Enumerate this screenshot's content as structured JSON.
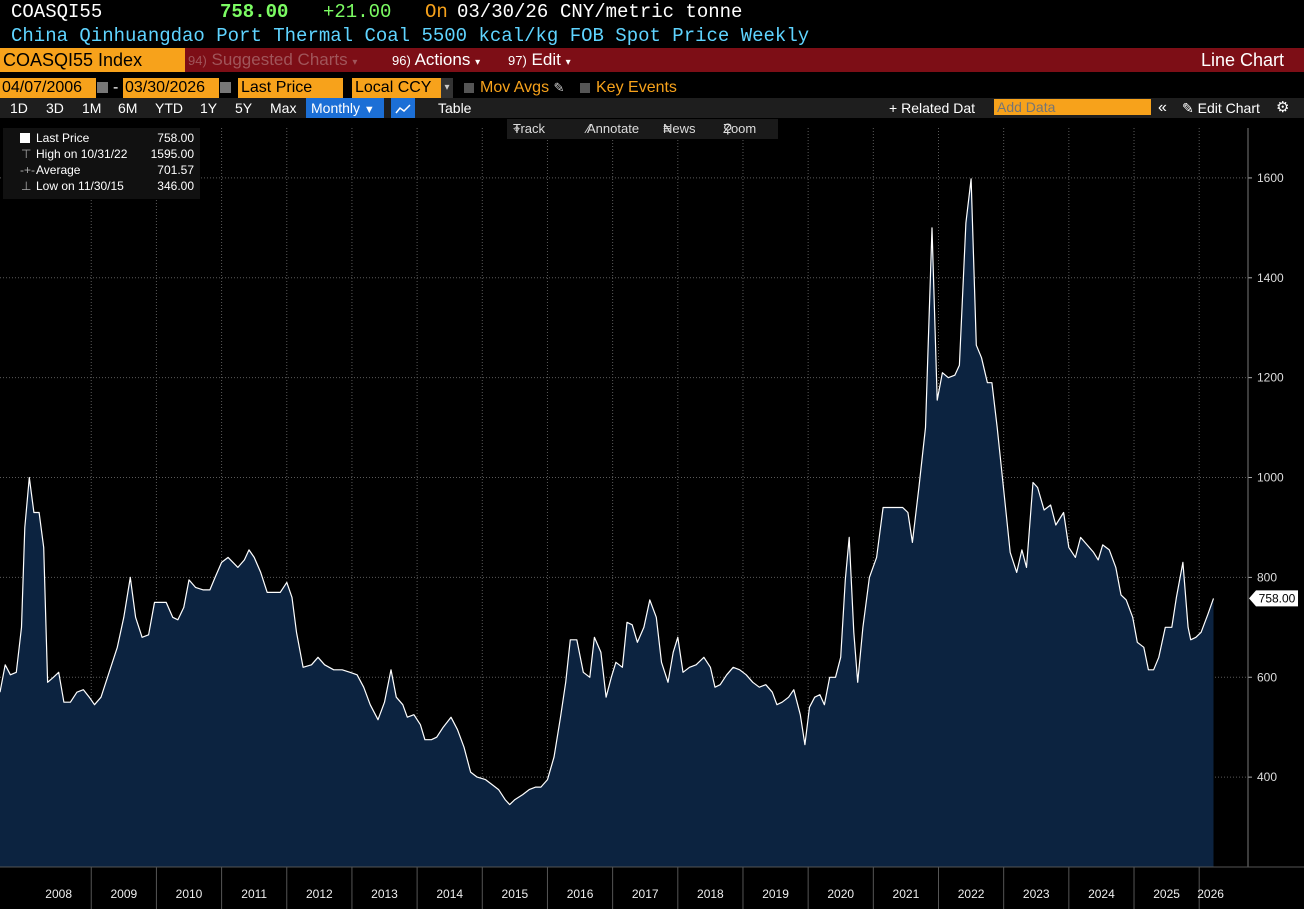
{
  "header": {
    "ticker": "COASQI55",
    "price": "758.00",
    "change": "+21.00",
    "on_label": "On",
    "date": "03/30/26",
    "unit": "CNY/metric tonne",
    "description": "China Qinhuangdao Port Thermal Coal 5500 kcal/kg FOB Spot Price Weekly"
  },
  "menubar": {
    "security": "COASQI55 Index",
    "suggested_num": "94)",
    "suggested_label": "Suggested Charts",
    "actions_num": "96)",
    "actions_label": "Actions",
    "edit_num": "97)",
    "edit_label": "Edit",
    "chart_type": "Line Chart"
  },
  "controls": {
    "start_date": "04/07/2006",
    "dash": "-",
    "end_date": "03/30/2026",
    "field": "Last Price",
    "currency": "Local CCY",
    "mov_avgs": "Mov Avgs",
    "key_events": "Key Events"
  },
  "periods": {
    "d1": "1D",
    "d3": "3D",
    "m1": "1M",
    "m6": "6M",
    "ytd": "YTD",
    "y1": "1Y",
    "y5": "5Y",
    "max": "Max",
    "frequency": "Monthly",
    "table": "Table",
    "related": "Related Dat",
    "add_data_placeholder": "Add Data",
    "edit_chart": "Edit Chart"
  },
  "chart_tools": {
    "track": "Track",
    "annotate": "Annotate",
    "news": "News",
    "zoom": "Zoom"
  },
  "legend": {
    "last_label": "Last Price",
    "last_value": "758.00",
    "high_label": "High on 10/31/22",
    "high_value": "1595.00",
    "avg_label": "Average",
    "avg_value": "701.57",
    "low_label": "Low on 11/30/15",
    "low_value": "346.00"
  },
  "colors": {
    "line": "#ffffff",
    "area": "#0c2340",
    "grid": "#5a5a5a",
    "header_green": "#7cfc63",
    "header_orange": "#f7a21b",
    "menubar_red": "#7d0e16"
  },
  "chart_data": {
    "type": "area",
    "ylim": [
      220,
      1700
    ],
    "yticks": [
      400,
      600,
      800,
      1000,
      1200,
      1400,
      1600
    ],
    "xlabels": [
      "2008",
      "2009",
      "2010",
      "2011",
      "2012",
      "2013",
      "2014",
      "2015",
      "2016",
      "2017",
      "2018",
      "2019",
      "2020",
      "2021",
      "2022",
      "2023",
      "2024",
      "2025",
      "2026"
    ],
    "x_start": 2007.6,
    "x_end": 2026.35,
    "last_value_label": "758.00",
    "points": [
      [
        2007.6,
        570
      ],
      [
        2007.68,
        625
      ],
      [
        2007.76,
        605
      ],
      [
        2007.85,
        610
      ],
      [
        2007.93,
        700
      ],
      [
        2007.98,
        900
      ],
      [
        2008.05,
        1000
      ],
      [
        2008.12,
        930
      ],
      [
        2008.2,
        930
      ],
      [
        2008.27,
        860
      ],
      [
        2008.33,
        590
      ],
      [
        2008.42,
        600
      ],
      [
        2008.5,
        610
      ],
      [
        2008.58,
        550
      ],
      [
        2008.68,
        550
      ],
      [
        2008.78,
        570
      ],
      [
        2008.88,
        575
      ],
      [
        2008.97,
        560
      ],
      [
        2009.05,
        545
      ],
      [
        2009.15,
        560
      ],
      [
        2009.25,
        600
      ],
      [
        2009.4,
        660
      ],
      [
        2009.5,
        720
      ],
      [
        2009.6,
        800
      ],
      [
        2009.68,
        720
      ],
      [
        2009.78,
        680
      ],
      [
        2009.88,
        685
      ],
      [
        2009.97,
        750
      ],
      [
        2010.05,
        750
      ],
      [
        2010.15,
        750
      ],
      [
        2010.25,
        720
      ],
      [
        2010.33,
        715
      ],
      [
        2010.42,
        740
      ],
      [
        2010.5,
        795
      ],
      [
        2010.6,
        780
      ],
      [
        2010.72,
        775
      ],
      [
        2010.82,
        775
      ],
      [
        2010.9,
        800
      ],
      [
        2011.0,
        830
      ],
      [
        2011.1,
        840
      ],
      [
        2011.25,
        820
      ],
      [
        2011.35,
        835
      ],
      [
        2011.42,
        855
      ],
      [
        2011.5,
        840
      ],
      [
        2011.6,
        810
      ],
      [
        2011.7,
        770
      ],
      [
        2011.8,
        770
      ],
      [
        2011.9,
        770
      ],
      [
        2012.0,
        790
      ],
      [
        2012.08,
        760
      ],
      [
        2012.15,
        690
      ],
      [
        2012.25,
        620
      ],
      [
        2012.38,
        625
      ],
      [
        2012.48,
        640
      ],
      [
        2012.58,
        625
      ],
      [
        2012.72,
        615
      ],
      [
        2012.85,
        615
      ],
      [
        2012.97,
        610
      ],
      [
        2013.08,
        605
      ],
      [
        2013.18,
        580
      ],
      [
        2013.28,
        545
      ],
      [
        2013.4,
        515
      ],
      [
        2013.5,
        550
      ],
      [
        2013.6,
        615
      ],
      [
        2013.68,
        560
      ],
      [
        2013.78,
        545
      ],
      [
        2013.85,
        520
      ],
      [
        2013.95,
        525
      ],
      [
        2014.05,
        505
      ],
      [
        2014.12,
        475
      ],
      [
        2014.22,
        475
      ],
      [
        2014.3,
        480
      ],
      [
        2014.4,
        500
      ],
      [
        2014.52,
        520
      ],
      [
        2014.62,
        495
      ],
      [
        2014.72,
        460
      ],
      [
        2014.82,
        410
      ],
      [
        2014.92,
        400
      ],
      [
        2015.05,
        395
      ],
      [
        2015.15,
        385
      ],
      [
        2015.25,
        375
      ],
      [
        2015.35,
        355
      ],
      [
        2015.42,
        345
      ],
      [
        2015.5,
        355
      ],
      [
        2015.62,
        365
      ],
      [
        2015.72,
        375
      ],
      [
        2015.82,
        380
      ],
      [
        2015.9,
        380
      ],
      [
        2016.0,
        395
      ],
      [
        2016.1,
        440
      ],
      [
        2016.2,
        520
      ],
      [
        2016.28,
        590
      ],
      [
        2016.35,
        675
      ],
      [
        2016.45,
        675
      ],
      [
        2016.55,
        610
      ],
      [
        2016.65,
        600
      ],
      [
        2016.72,
        680
      ],
      [
        2016.82,
        650
      ],
      [
        2016.9,
        560
      ],
      [
        2016.98,
        600
      ],
      [
        2017.05,
        630
      ],
      [
        2017.15,
        620
      ],
      [
        2017.22,
        710
      ],
      [
        2017.3,
        705
      ],
      [
        2017.38,
        670
      ],
      [
        2017.48,
        700
      ],
      [
        2017.57,
        755
      ],
      [
        2017.67,
        720
      ],
      [
        2017.75,
        630
      ],
      [
        2017.85,
        590
      ],
      [
        2017.93,
        650
      ],
      [
        2018.0,
        680
      ],
      [
        2018.08,
        610
      ],
      [
        2018.18,
        620
      ],
      [
        2018.28,
        625
      ],
      [
        2018.4,
        640
      ],
      [
        2018.5,
        620
      ],
      [
        2018.57,
        580
      ],
      [
        2018.65,
        585
      ],
      [
        2018.75,
        605
      ],
      [
        2018.85,
        620
      ],
      [
        2018.95,
        615
      ],
      [
        2019.05,
        605
      ],
      [
        2019.15,
        590
      ],
      [
        2019.25,
        580
      ],
      [
        2019.35,
        585
      ],
      [
        2019.45,
        570
      ],
      [
        2019.52,
        545
      ],
      [
        2019.6,
        550
      ],
      [
        2019.7,
        560
      ],
      [
        2019.78,
        575
      ],
      [
        2019.88,
        525
      ],
      [
        2019.95,
        465
      ],
      [
        2020.02,
        540
      ],
      [
        2020.1,
        560
      ],
      [
        2020.18,
        565
      ],
      [
        2020.25,
        545
      ],
      [
        2020.33,
        600
      ],
      [
        2020.42,
        600
      ],
      [
        2020.5,
        640
      ],
      [
        2020.57,
        795
      ],
      [
        2020.63,
        880
      ],
      [
        2020.7,
        690
      ],
      [
        2020.76,
        590
      ],
      [
        2020.84,
        700
      ],
      [
        2020.94,
        800
      ],
      [
        2021.05,
        840
      ],
      [
        2021.15,
        940
      ],
      [
        2021.25,
        940
      ],
      [
        2021.35,
        940
      ],
      [
        2021.45,
        940
      ],
      [
        2021.53,
        930
      ],
      [
        2021.6,
        870
      ],
      [
        2021.7,
        980
      ],
      [
        2021.8,
        1100
      ],
      [
        2021.9,
        1500
      ],
      [
        2021.98,
        1155
      ],
      [
        2022.06,
        1210
      ],
      [
        2022.15,
        1200
      ],
      [
        2022.25,
        1205
      ],
      [
        2022.32,
        1225
      ],
      [
        2022.42,
        1510
      ],
      [
        2022.5,
        1598
      ],
      [
        2022.58,
        1265
      ],
      [
        2022.66,
        1240
      ],
      [
        2022.75,
        1190
      ],
      [
        2022.82,
        1190
      ],
      [
        2022.9,
        1100
      ],
      [
        2022.98,
        1000
      ],
      [
        2023.1,
        850
      ],
      [
        2023.2,
        810
      ],
      [
        2023.28,
        855
      ],
      [
        2023.35,
        820
      ],
      [
        2023.45,
        990
      ],
      [
        2023.52,
        980
      ],
      [
        2023.62,
        935
      ],
      [
        2023.72,
        945
      ],
      [
        2023.8,
        905
      ],
      [
        2023.92,
        930
      ],
      [
        2024.0,
        860
      ],
      [
        2024.1,
        840
      ],
      [
        2024.18,
        880
      ],
      [
        2024.28,
        865
      ],
      [
        2024.38,
        850
      ],
      [
        2024.45,
        835
      ],
      [
        2024.52,
        865
      ],
      [
        2024.62,
        855
      ],
      [
        2024.72,
        820
      ],
      [
        2024.8,
        765
      ],
      [
        2024.88,
        755
      ],
      [
        2024.98,
        720
      ],
      [
        2025.05,
        670
      ],
      [
        2025.15,
        660
      ],
      [
        2025.22,
        615
      ],
      [
        2025.3,
        615
      ],
      [
        2025.38,
        640
      ],
      [
        2025.48,
        700
      ],
      [
        2025.58,
        700
      ],
      [
        2025.65,
        760
      ],
      [
        2025.75,
        830
      ],
      [
        2025.83,
        700
      ],
      [
        2025.87,
        675
      ],
      [
        2025.95,
        680
      ],
      [
        2026.03,
        690
      ],
      [
        2026.13,
        725
      ],
      [
        2026.22,
        758
      ]
    ]
  }
}
